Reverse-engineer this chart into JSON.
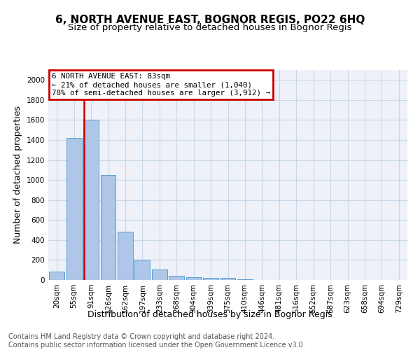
{
  "title": "6, NORTH AVENUE EAST, BOGNOR REGIS, PO22 6HQ",
  "subtitle": "Size of property relative to detached houses in Bognor Regis",
  "xlabel": "Distribution of detached houses by size in Bognor Regis",
  "ylabel": "Number of detached properties",
  "bar_values": [
    85,
    1420,
    1600,
    1050,
    480,
    205,
    105,
    40,
    28,
    22,
    20,
    5,
    3,
    2,
    1,
    1,
    1,
    0,
    0,
    0,
    0
  ],
  "bar_labels": [
    "20sqm",
    "55sqm",
    "91sqm",
    "126sqm",
    "162sqm",
    "197sqm",
    "233sqm",
    "268sqm",
    "304sqm",
    "339sqm",
    "375sqm",
    "410sqm",
    "446sqm",
    "481sqm",
    "516sqm",
    "552sqm",
    "587sqm",
    "623sqm",
    "658sqm",
    "694sqm",
    "729sqm"
  ],
  "bar_color": "#aec6e8",
  "bar_edge_color": "#5a9fd4",
  "redline_x": 1.57,
  "redline_color": "#cc0000",
  "annotation_text": "6 NORTH AVENUE EAST: 83sqm\n← 21% of detached houses are smaller (1,040)\n78% of semi-detached houses are larger (3,912) →",
  "annotation_box_color": "#cc0000",
  "grid_color": "#c8d8e8",
  "background_color": "#eef2f8",
  "ylim": [
    0,
    2100
  ],
  "yticks": [
    0,
    200,
    400,
    600,
    800,
    1000,
    1200,
    1400,
    1600,
    1800,
    2000
  ],
  "footnote": "Contains HM Land Registry data © Crown copyright and database right 2024.\nContains public sector information licensed under the Open Government Licence v3.0.",
  "title_fontsize": 11,
  "subtitle_fontsize": 9.5,
  "xlabel_fontsize": 9,
  "ylabel_fontsize": 9,
  "tick_fontsize": 7.5,
  "footnote_fontsize": 7
}
